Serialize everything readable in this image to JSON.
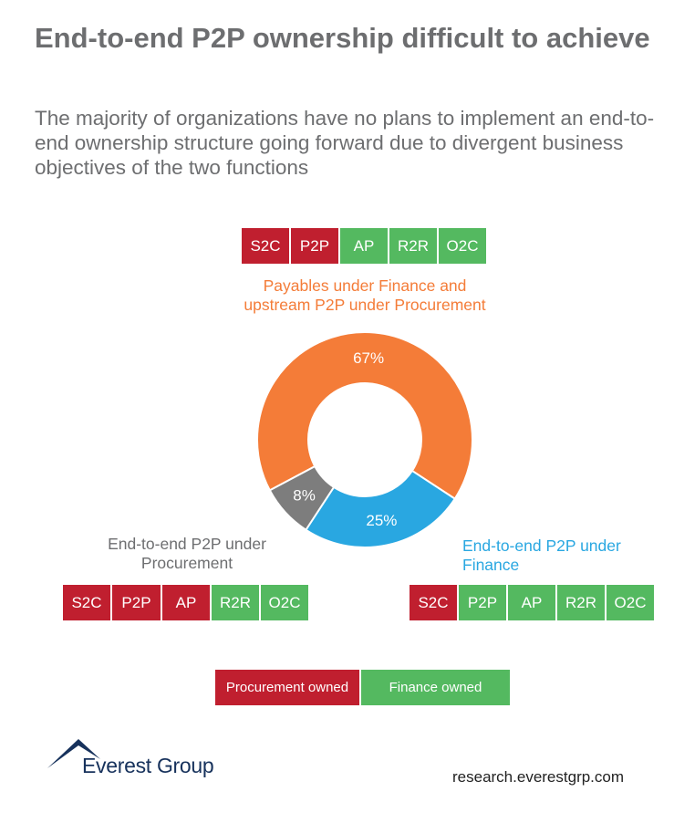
{
  "title": "End-to-end P2P ownership difficult to achieve",
  "subtitle": "The majority of organizations have no plans to implement an end-to-end ownership structure going forward due to divergent business objectives of the two functions",
  "colors": {
    "procurement": "#c01f2f",
    "finance": "#54b960",
    "orange": "#f47c38",
    "blue": "#29a7e1",
    "gray": "#7d7d7d",
    "text_gray": "#6d6e70"
  },
  "chains": {
    "top": [
      {
        "label": "S2C",
        "owner": "procurement"
      },
      {
        "label": "P2P",
        "owner": "procurement"
      },
      {
        "label": "AP",
        "owner": "finance"
      },
      {
        "label": "R2R",
        "owner": "finance"
      },
      {
        "label": "O2C",
        "owner": "finance"
      }
    ],
    "left": [
      {
        "label": "S2C",
        "owner": "procurement"
      },
      {
        "label": "P2P",
        "owner": "procurement"
      },
      {
        "label": "AP",
        "owner": "procurement"
      },
      {
        "label": "R2R",
        "owner": "finance"
      },
      {
        "label": "O2C",
        "owner": "finance"
      }
    ],
    "right": [
      {
        "label": "S2C",
        "owner": "procurement"
      },
      {
        "label": "P2P",
        "owner": "finance"
      },
      {
        "label": "AP",
        "owner": "finance"
      },
      {
        "label": "R2R",
        "owner": "finance"
      },
      {
        "label": "O2C",
        "owner": "finance"
      }
    ]
  },
  "chart_data": {
    "type": "pie",
    "variant": "donut",
    "title": "",
    "slices": [
      {
        "label": "Payables under Finance and upstream P2P under Procurement",
        "value": 67,
        "display": "67%",
        "color": "#f47c38"
      },
      {
        "label": "End-to-end P2P under Finance",
        "value": 25,
        "display": "25%",
        "color": "#29a7e1"
      },
      {
        "label": "End-to-end P2P under Procurement",
        "value": 8,
        "display": "8%",
        "color": "#7d7d7d"
      }
    ]
  },
  "labels": {
    "top": "Payables under Finance and upstream P2P under Procurement",
    "left": "End-to-end P2P under Procurement",
    "right": "End-to-end P2P under Finance"
  },
  "legend": {
    "procurement": "Procurement owned",
    "finance": "Finance owned"
  },
  "footer": {
    "brand": "Everest Group",
    "url": "research.everestgrp.com"
  }
}
